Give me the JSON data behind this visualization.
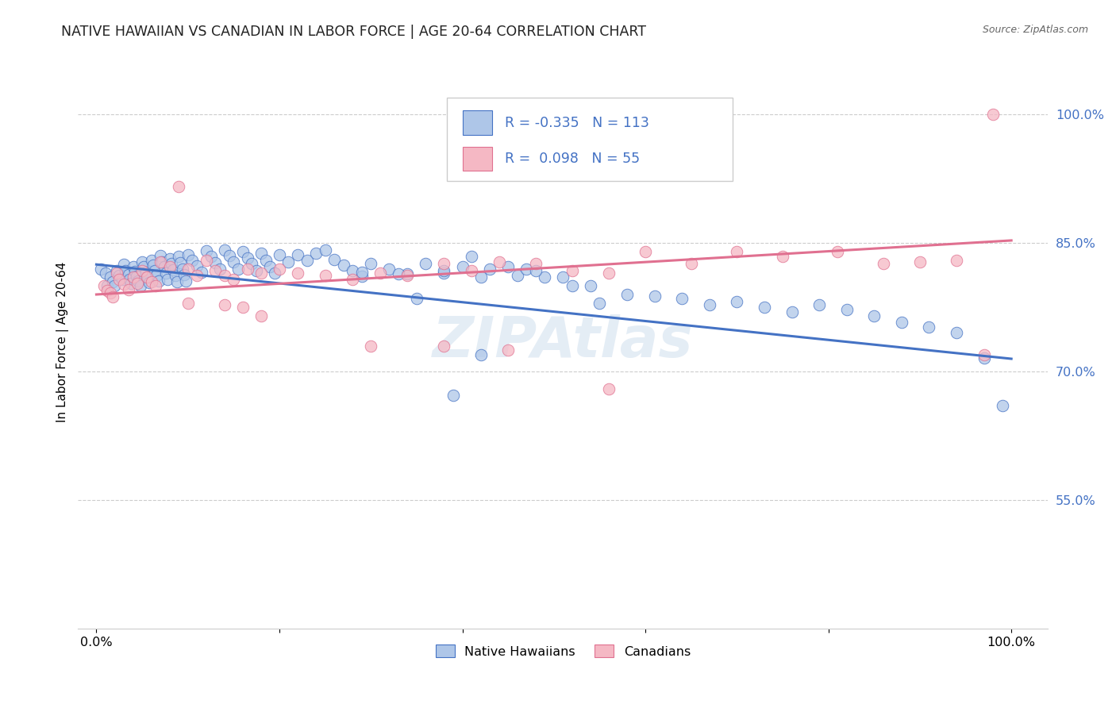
{
  "title": "NATIVE HAWAIIAN VS CANADIAN IN LABOR FORCE | AGE 20-64 CORRELATION CHART",
  "source": "Source: ZipAtlas.com",
  "ylabel": "In Labor Force | Age 20-64",
  "xlim": [
    -0.02,
    1.04
  ],
  "ylim": [
    0.4,
    1.07
  ],
  "yticks": [
    0.55,
    0.7,
    0.85,
    1.0
  ],
  "ytick_labels": [
    "55.0%",
    "70.0%",
    "85.0%",
    "100.0%"
  ],
  "xticks": [
    0.0,
    0.2,
    0.4,
    0.6,
    0.8,
    1.0
  ],
  "xtick_labels": [
    "0.0%",
    "",
    "",
    "",
    "",
    "100.0%"
  ],
  "blue_R": -0.335,
  "blue_N": 113,
  "pink_R": 0.098,
  "pink_N": 55,
  "blue_fill": "#aec6e8",
  "pink_fill": "#f5b8c4",
  "blue_edge": "#4472c4",
  "pink_edge": "#e07090",
  "blue_line": "#4472c4",
  "pink_line": "#e07090",
  "legend_label_blue": "Native Hawaiians",
  "legend_label_pink": "Canadians",
  "watermark": "ZIPAtlas",
  "blue_trend_start_y": 0.825,
  "blue_trend_end_y": 0.715,
  "pink_trend_start_y": 0.79,
  "pink_trend_end_y": 0.853,
  "blue_x": [
    0.005,
    0.01,
    0.012,
    0.015,
    0.018,
    0.02,
    0.022,
    0.025,
    0.028,
    0.03,
    0.032,
    0.035,
    0.036,
    0.038,
    0.04,
    0.042,
    0.044,
    0.046,
    0.048,
    0.05,
    0.052,
    0.054,
    0.056,
    0.058,
    0.06,
    0.062,
    0.064,
    0.066,
    0.068,
    0.07,
    0.072,
    0.074,
    0.076,
    0.078,
    0.08,
    0.082,
    0.084,
    0.086,
    0.088,
    0.09,
    0.092,
    0.094,
    0.096,
    0.098,
    0.1,
    0.105,
    0.11,
    0.115,
    0.12,
    0.125,
    0.13,
    0.135,
    0.14,
    0.145,
    0.15,
    0.155,
    0.16,
    0.165,
    0.17,
    0.175,
    0.18,
    0.185,
    0.19,
    0.195,
    0.2,
    0.21,
    0.22,
    0.23,
    0.24,
    0.25,
    0.26,
    0.27,
    0.28,
    0.29,
    0.3,
    0.32,
    0.34,
    0.36,
    0.38,
    0.4,
    0.43,
    0.46,
    0.49,
    0.52,
    0.55,
    0.58,
    0.61,
    0.64,
    0.67,
    0.7,
    0.73,
    0.76,
    0.79,
    0.82,
    0.85,
    0.88,
    0.91,
    0.94,
    0.97,
    0.99,
    0.35,
    0.42,
    0.47,
    0.38,
    0.29,
    0.33,
    0.41,
    0.45,
    0.48,
    0.51,
    0.54,
    0.42,
    0.39
  ],
  "blue_y": [
    0.82,
    0.815,
    0.8,
    0.81,
    0.805,
    0.8,
    0.818,
    0.812,
    0.808,
    0.825,
    0.818,
    0.813,
    0.808,
    0.803,
    0.822,
    0.817,
    0.811,
    0.806,
    0.8,
    0.828,
    0.822,
    0.816,
    0.81,
    0.804,
    0.83,
    0.824,
    0.818,
    0.812,
    0.806,
    0.835,
    0.828,
    0.822,
    0.815,
    0.808,
    0.832,
    0.826,
    0.819,
    0.812,
    0.805,
    0.834,
    0.827,
    0.82,
    0.813,
    0.806,
    0.836,
    0.83,
    0.823,
    0.816,
    0.841,
    0.834,
    0.827,
    0.82,
    0.842,
    0.835,
    0.828,
    0.82,
    0.84,
    0.833,
    0.826,
    0.818,
    0.838,
    0.83,
    0.822,
    0.815,
    0.836,
    0.828,
    0.836,
    0.83,
    0.838,
    0.842,
    0.831,
    0.824,
    0.818,
    0.811,
    0.826,
    0.82,
    0.814,
    0.826,
    0.815,
    0.822,
    0.82,
    0.812,
    0.81,
    0.8,
    0.78,
    0.79,
    0.788,
    0.785,
    0.778,
    0.782,
    0.775,
    0.77,
    0.778,
    0.772,
    0.765,
    0.758,
    0.752,
    0.746,
    0.716,
    0.66,
    0.785,
    0.81,
    0.82,
    0.818,
    0.816,
    0.814,
    0.834,
    0.822,
    0.818,
    0.81,
    0.8,
    0.72,
    0.672
  ],
  "pink_x": [
    0.008,
    0.012,
    0.015,
    0.018,
    0.022,
    0.025,
    0.03,
    0.035,
    0.04,
    0.045,
    0.05,
    0.055,
    0.06,
    0.065,
    0.07,
    0.08,
    0.09,
    0.1,
    0.11,
    0.12,
    0.13,
    0.14,
    0.15,
    0.165,
    0.18,
    0.2,
    0.22,
    0.25,
    0.28,
    0.31,
    0.34,
    0.38,
    0.41,
    0.44,
    0.48,
    0.52,
    0.56,
    0.6,
    0.65,
    0.7,
    0.75,
    0.81,
    0.86,
    0.9,
    0.94,
    0.97,
    0.1,
    0.14,
    0.16,
    0.18,
    0.3,
    0.38,
    0.45,
    0.56,
    0.98
  ],
  "pink_y": [
    0.8,
    0.795,
    0.792,
    0.787,
    0.815,
    0.808,
    0.802,
    0.796,
    0.81,
    0.803,
    0.818,
    0.81,
    0.805,
    0.8,
    0.828,
    0.822,
    0.916,
    0.82,
    0.812,
    0.83,
    0.818,
    0.812,
    0.808,
    0.82,
    0.815,
    0.82,
    0.815,
    0.812,
    0.808,
    0.815,
    0.812,
    0.826,
    0.818,
    0.828,
    0.826,
    0.818,
    0.815,
    0.84,
    0.826,
    0.84,
    0.834,
    0.84,
    0.826,
    0.828,
    0.83,
    0.72,
    0.78,
    0.778,
    0.775,
    0.765,
    0.73,
    0.73,
    0.725,
    0.68,
    1.0
  ]
}
